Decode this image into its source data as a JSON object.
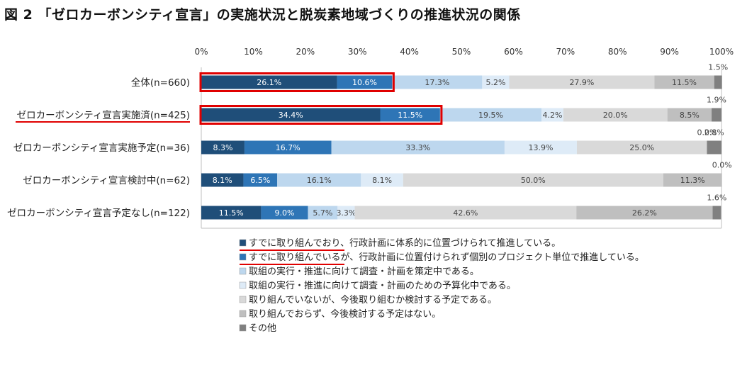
{
  "figure_title": "図 2 「ゼロカーボンシティ宣言」の実施状況と脱炭素地域づくりの推進状況の関係",
  "chart_data": {
    "type": "bar",
    "orientation": "horizontal",
    "stacked": true,
    "unit": "%",
    "xlim": [
      0,
      100
    ],
    "x_ticks": [
      "0%",
      "10%",
      "20%",
      "30%",
      "40%",
      "50%",
      "60%",
      "70%",
      "80%",
      "90%",
      "100%"
    ],
    "categories": [
      "全体(n=660)",
      "ゼロカーボンシティ宣言実施済(n=425)",
      "ゼロカーボンシティ宣言実施予定(n=36)",
      "ゼロカーボンシティ宣言検討中(n=62)",
      "ゼロカーボンシティ宣言予定なし(n=122)"
    ],
    "series": [
      {
        "name": "すでに取り組んでおり、行政計画に体系的に位置づけられて推進している。",
        "color": "#1f4e79",
        "values": [
          26.1,
          34.4,
          8.3,
          8.1,
          11.5
        ],
        "labels": [
          "26.1%",
          "34.4%",
          "8.3%",
          "8.1%",
          "11.5%"
        ]
      },
      {
        "name": "すでに取り組んでいるが、行政計画に位置付けられず個別のプロジェクト単位で推進している。",
        "color": "#2e75b6",
        "values": [
          10.6,
          11.5,
          16.7,
          6.5,
          9.0
        ],
        "labels": [
          "10.6%",
          "11.5%",
          "16.7%",
          "6.5%",
          "9.0%"
        ]
      },
      {
        "name": "取組の実行・推進に向けて調査・計画を策定中である。",
        "color": "#bdd7ee",
        "values": [
          17.3,
          19.5,
          33.3,
          16.1,
          5.7
        ],
        "labels": [
          "17.3%",
          "19.5%",
          "33.3%",
          "16.1%",
          "5.7%"
        ]
      },
      {
        "name": "取組の実行・推進に向けて調査・計画のための予算化中である。",
        "color": "#deebf7",
        "values": [
          5.2,
          4.2,
          13.9,
          8.1,
          3.3
        ],
        "labels": [
          "5.2%",
          "4.2%",
          "13.9%",
          "8.1%",
          "3.3%"
        ]
      },
      {
        "name": "取り組んでいないが、今後取り組むか検討する予定である。",
        "color": "#d9d9d9",
        "values": [
          27.9,
          20.0,
          25.0,
          50.0,
          42.6
        ],
        "labels": [
          "27.9%",
          "20.0%",
          "25.0%",
          "50.0%",
          "42.6%"
        ]
      },
      {
        "name": "取り組んでおらず、今後検討する予定はない。",
        "color": "#bfbfbf",
        "values": [
          11.5,
          8.5,
          0.0,
          11.3,
          26.2
        ],
        "labels": [
          "11.5%",
          "8.5%",
          "0.0%",
          "11.3%",
          "26.2%"
        ]
      },
      {
        "name": "その他",
        "color": "#808080",
        "values": [
          1.5,
          1.9,
          2.8,
          0.0,
          1.6
        ],
        "labels": [
          "1.5%",
          "1.9%",
          "2.8%",
          "0.0%",
          "1.6%"
        ]
      }
    ],
    "highlights": {
      "color": "#e00000",
      "boxed_series_count": 2,
      "boxed_rows": [
        0,
        1
      ],
      "underlined_category_rows": [
        1
      ],
      "underlined_legend_items": [
        0,
        1
      ]
    },
    "legend_position": "bottom-center",
    "grid": false
  }
}
